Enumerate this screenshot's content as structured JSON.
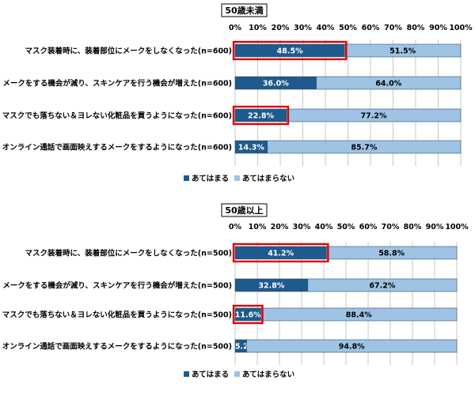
{
  "colors": {
    "agree": "#1f5a8c",
    "disagree": "#9ec3e4",
    "highlight": "#e00000",
    "grid": "#b9b9b9",
    "bar_border": "#2c4f6e"
  },
  "chart_data": [
    {
      "type": "bar",
      "orientation": "horizontal",
      "stacked": true,
      "title": "50歳未満",
      "categories": [
        "マスク装着時に、装着部位にメークをしなくなった(n=600)",
        "メークをする機会が減り、スキンケアを行う機会が増えた(n=600)",
        "マスクでも落ちない＆ヨレない化粧品を買うようになった(n=600)",
        "オンライン通話で画面映えするメークをするようになった(n=600)"
      ],
      "series": [
        {
          "name": "あてはまる",
          "values": [
            48.5,
            36.0,
            22.8,
            14.3
          ],
          "labels": [
            "48.5%",
            "36.0%",
            "22.8%",
            "14.3%"
          ]
        },
        {
          "name": "あてはまらない",
          "values": [
            51.5,
            64.0,
            77.2,
            85.7
          ],
          "labels": [
            "51.5%",
            "64.0%",
            "77.2%",
            "85.7%"
          ]
        }
      ],
      "highlighted_categories": [
        0,
        2
      ],
      "xlim": [
        0,
        100
      ],
      "ticks": [
        "0%",
        "10%",
        "20%",
        "30%",
        "40%",
        "50%",
        "60%",
        "70%",
        "80%",
        "90%",
        "100%"
      ],
      "grid": true,
      "legend": "bottom"
    },
    {
      "type": "bar",
      "orientation": "horizontal",
      "stacked": true,
      "title": "50歳以上",
      "categories": [
        "マスク装着時に、装着部位にメークをしなくなった(n=500)",
        "メークをする機会が減り、スキンケアを行う機会が増えた(n=500)",
        "マスクでも落ちない＆ヨレない化粧品を買うようになった(n=500)",
        "オンライン通話で画面映えするメークをするようになった(n=500)"
      ],
      "series": [
        {
          "name": "あてはまる",
          "values": [
            41.2,
            32.8,
            11.6,
            5.2
          ],
          "labels": [
            "41.2%",
            "32.8%",
            "11.6%",
            "5.2%"
          ]
        },
        {
          "name": "あてはまらない",
          "values": [
            58.8,
            67.2,
            88.4,
            94.8
          ],
          "labels": [
            "58.8%",
            "67.2%",
            "88.4%",
            "94.8%"
          ]
        }
      ],
      "highlighted_categories": [
        0,
        2
      ],
      "xlim": [
        0,
        100
      ],
      "ticks": [
        "0%",
        "10%",
        "20%",
        "30%",
        "40%",
        "50%",
        "60%",
        "70%",
        "80%",
        "90%",
        "100%"
      ],
      "grid": true,
      "legend": "bottom"
    }
  ]
}
